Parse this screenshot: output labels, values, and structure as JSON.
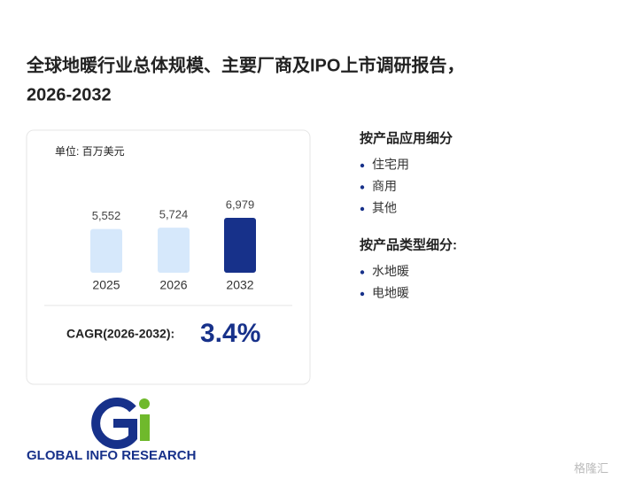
{
  "title_lines": [
    "全球地暖行业总体规模、主要厂商及IPO上市调研报告，",
    "2026-2032"
  ],
  "chart_data": {
    "type": "bar",
    "unit": "单位: 百万美元",
    "categories": [
      "2025",
      "2026",
      "2032"
    ],
    "values": [
      5552,
      5724,
      6979
    ],
    "value_labels": [
      "5,552",
      "5,724",
      "6,979"
    ],
    "colors": [
      "#d6e8fb",
      "#d6e8fb",
      "#17318a"
    ]
  },
  "cagr": {
    "label": "CAGR(2026-2032):",
    "value": "3.4%"
  },
  "segments": [
    {
      "heading": "按产品应用细分",
      "items": [
        "住宅用",
        "商用",
        "其他"
      ]
    },
    {
      "heading": "按产品类型细分:",
      "items": [
        "水地暖",
        "电地暖"
      ]
    }
  ],
  "logo": "GLOBAL INFO RESEARCH",
  "watermark": "格隆汇"
}
